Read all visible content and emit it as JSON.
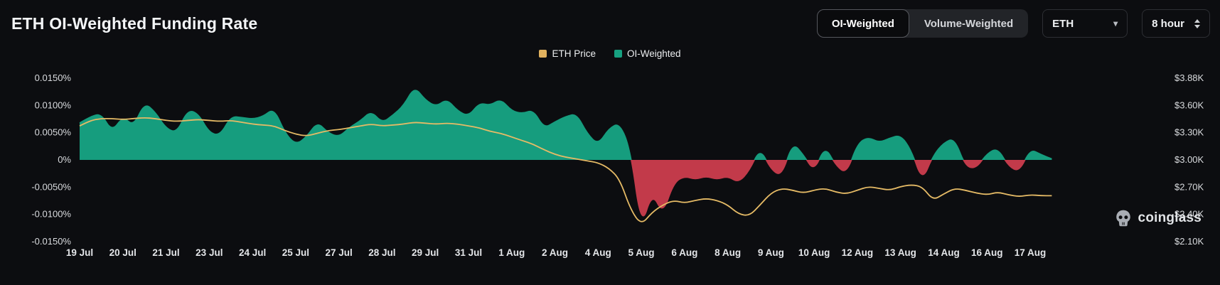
{
  "header": {
    "title": "ETH OI-Weighted Funding Rate",
    "toggle": {
      "options": [
        "OI-Weighted",
        "Volume-Weighted"
      ],
      "active": "OI-Weighted"
    },
    "symbol_select": {
      "value": "ETH"
    },
    "interval_select": {
      "value": "8 hour"
    }
  },
  "watermark": {
    "label": "coinglass"
  },
  "chart_data": {
    "type": "area",
    "title": "ETH OI-Weighted Funding Rate",
    "legend": [
      {
        "label": "ETH Price",
        "color": "#E2B25F"
      },
      {
        "label": "OI-Weighted",
        "color": "#17A181"
      }
    ],
    "left_axis": {
      "unit": "%",
      "min": -0.015,
      "max": 0.015,
      "ticks": [
        "0.0150%",
        "0.0100%",
        "0.0050%",
        "0%",
        "-0.0050%",
        "-0.0100%",
        "-0.0150%"
      ]
    },
    "right_axis": {
      "unit": "$K",
      "min": 2.1,
      "max": 3.88,
      "ticks": [
        "$3.88K",
        "$3.60K",
        "$3.30K",
        "$3.00K",
        "$2.70K",
        "$2.40K",
        "$2.10K"
      ]
    },
    "x_labels": [
      "19 Jul",
      "20 Jul",
      "21 Jul",
      "23 Jul",
      "24 Jul",
      "25 Jul",
      "27 Jul",
      "28 Jul",
      "29 Jul",
      "31 Jul",
      "1 Aug",
      "2 Aug",
      "4 Aug",
      "5 Aug",
      "6 Aug",
      "8 Aug",
      "9 Aug",
      "10 Aug",
      "12 Aug",
      "13 Aug",
      "14 Aug",
      "16 Aug",
      "17 Aug"
    ],
    "points_per_label_interval": 4,
    "series": [
      {
        "name": "OI-Weighted",
        "type": "area",
        "axis": "left",
        "color_positive": "#169D7E",
        "color_negative": "#C23A4A",
        "values": [
          0.0068,
          0.008,
          0.0085,
          0.0052,
          0.008,
          0.0062,
          0.0105,
          0.0088,
          0.0058,
          0.005,
          0.0092,
          0.0085,
          0.005,
          0.0045,
          0.008,
          0.0078,
          0.0075,
          0.008,
          0.0095,
          0.005,
          0.0028,
          0.0042,
          0.007,
          0.005,
          0.0042,
          0.006,
          0.0072,
          0.009,
          0.0068,
          0.0082,
          0.01,
          0.0135,
          0.011,
          0.0098,
          0.0112,
          0.009,
          0.008,
          0.0105,
          0.01,
          0.0112,
          0.009,
          0.0085,
          0.0092,
          0.0058,
          0.007,
          0.008,
          0.0085,
          0.0048,
          0.0028,
          0.0058,
          0.0068,
          0.0018,
          -0.0125,
          -0.006,
          -0.01,
          -0.0042,
          -0.003,
          -0.0036,
          -0.003,
          -0.0036,
          -0.003,
          -0.0042,
          -0.002,
          0.0022,
          -0.0018,
          -0.003,
          0.0032,
          0.001,
          -0.0022,
          0.0026,
          -0.001,
          -0.0026,
          0.003,
          0.0042,
          0.0032,
          0.004,
          0.0046,
          0.0018,
          -0.004,
          0.0008,
          0.0032,
          0.004,
          -0.0012,
          -0.0016,
          0.0012,
          0.0022,
          -0.0012,
          -0.0022,
          0.002,
          0.001,
          0.0002
        ]
      },
      {
        "name": "ETH Price",
        "type": "line",
        "axis": "right",
        "color": "#E6BB66",
        "values": [
          3.36,
          3.42,
          3.44,
          3.44,
          3.43,
          3.44,
          3.45,
          3.44,
          3.42,
          3.41,
          3.42,
          3.43,
          3.42,
          3.41,
          3.42,
          3.4,
          3.38,
          3.37,
          3.36,
          3.31,
          3.27,
          3.25,
          3.28,
          3.31,
          3.32,
          3.34,
          3.36,
          3.38,
          3.36,
          3.37,
          3.38,
          3.4,
          3.39,
          3.38,
          3.39,
          3.38,
          3.36,
          3.34,
          3.3,
          3.28,
          3.24,
          3.2,
          3.16,
          3.1,
          3.05,
          3.02,
          3.0,
          2.98,
          2.96,
          2.9,
          2.78,
          2.45,
          2.28,
          2.42,
          2.5,
          2.55,
          2.52,
          2.55,
          2.57,
          2.55,
          2.5,
          2.4,
          2.38,
          2.5,
          2.63,
          2.68,
          2.66,
          2.63,
          2.66,
          2.68,
          2.64,
          2.62,
          2.66,
          2.7,
          2.68,
          2.66,
          2.7,
          2.72,
          2.7,
          2.55,
          2.62,
          2.68,
          2.66,
          2.63,
          2.61,
          2.64,
          2.61,
          2.59,
          2.61,
          2.6,
          2.6
        ]
      }
    ]
  }
}
